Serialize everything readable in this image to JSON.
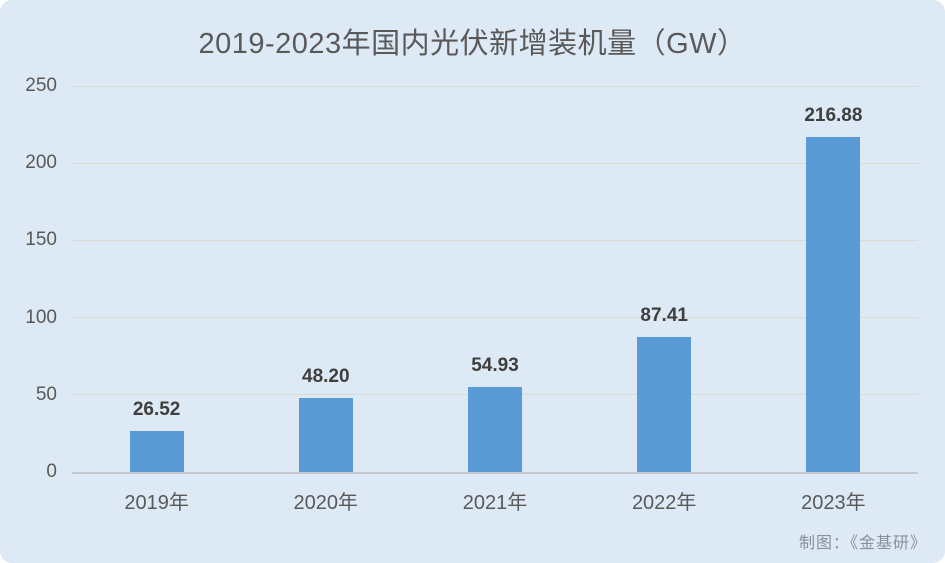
{
  "title": "2019-2023年国内光伏新增装机量（GW）",
  "attribution": "制图：《金基研》",
  "colors": {
    "background": "#dde9f5",
    "bar": "#5b9bd5",
    "title_text": "#595959",
    "tick_text": "#595959",
    "data_label_text": "#3f3f3f",
    "gridline": "#d9dad2",
    "axis_line": "#c3c9cf",
    "attribution_text": "#87909c"
  },
  "chart_data": {
    "type": "bar",
    "categories": [
      "2019年",
      "2020年",
      "2021年",
      "2022年",
      "2023年"
    ],
    "values": [
      26.52,
      48.2,
      54.93,
      87.41,
      216.88
    ],
    "value_label_decimals": 2,
    "title": "2019-2023年国内光伏新增装机量（GW）",
    "xlabel": "",
    "ylabel": "",
    "ylim": [
      0,
      250
    ],
    "yticks": [
      0,
      50,
      100,
      150,
      200,
      250
    ],
    "grid": true,
    "legend_position": "none",
    "value_labels": true
  }
}
